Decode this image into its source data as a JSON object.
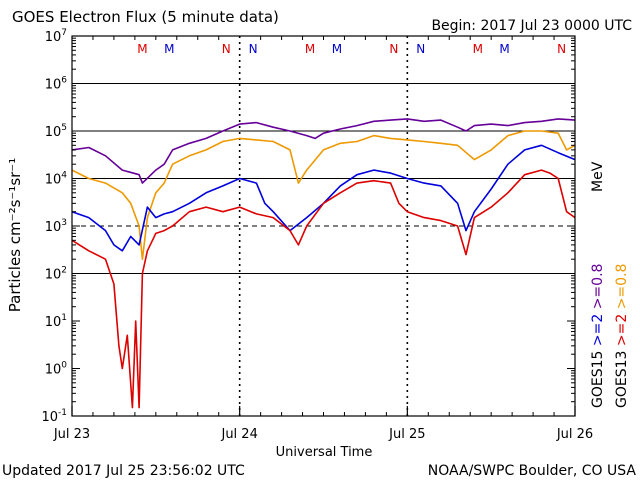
{
  "header": {
    "title": "GOES Electron Flux (5 minute data)",
    "begin": "Begin: 2017 Jul 23 0000 UTC"
  },
  "footer": {
    "updated": "Updated 2017 Jul 25 23:56:02 UTC",
    "credit": "NOAA/SWPC Boulder, CO USA"
  },
  "chart_data": {
    "type": "line",
    "title": "GOES Electron Flux (5 minute data)",
    "xlabel": "Universal Time",
    "ylabel": "Particles cm⁻²s⁻¹sr⁻¹",
    "y_scale": "log",
    "ylim": [
      0.1,
      10000000
    ],
    "y_ticks": [
      {
        "exp": "-1"
      },
      {
        "exp": "0"
      },
      {
        "exp": "1"
      },
      {
        "exp": "2"
      },
      {
        "exp": "3"
      },
      {
        "exp": "4"
      },
      {
        "exp": "5"
      },
      {
        "exp": "6"
      },
      {
        "exp": "7"
      }
    ],
    "y_solid_lines": [
      100,
      10000,
      100000,
      1000000
    ],
    "y_dashed_lines": [
      1000
    ],
    "xlim_days": [
      0,
      3
    ],
    "x_ticks": [
      {
        "day": 0,
        "label": "Jul 23"
      },
      {
        "day": 1,
        "label": "Jul 24"
      },
      {
        "day": 2,
        "label": "Jul 25"
      },
      {
        "day": 3,
        "label": "Jul 26"
      }
    ],
    "local_time_markers": [
      {
        "day": 0.42,
        "label": "M",
        "color": "#dd0000"
      },
      {
        "day": 0.58,
        "label": "M",
        "color": "#0000cc"
      },
      {
        "day": 0.92,
        "label": "N",
        "color": "#dd0000"
      },
      {
        "day": 1.08,
        "label": "N",
        "color": "#0000cc"
      },
      {
        "day": 1.42,
        "label": "M",
        "color": "#dd0000"
      },
      {
        "day": 1.58,
        "label": "M",
        "color": "#0000cc"
      },
      {
        "day": 1.92,
        "label": "N",
        "color": "#dd0000"
      },
      {
        "day": 2.08,
        "label": "N",
        "color": "#0000cc"
      },
      {
        "day": 2.42,
        "label": "M",
        "color": "#dd0000"
      },
      {
        "day": 2.58,
        "label": "M",
        "color": "#0000cc"
      },
      {
        "day": 2.92,
        "label": "N",
        "color": "#dd0000"
      },
      {
        "day": 3.08,
        "label": "N",
        "color": "#0000cc"
      }
    ],
    "legend": [
      {
        "label": "GOES15",
        "color": "#000000"
      },
      {
        "label": ">=2",
        "color": "#0000dd"
      },
      {
        "label": ">=0.8",
        "color": "#660099"
      },
      {
        "label": "GOES13",
        "color": "#000000"
      },
      {
        "label": ">=2",
        "color": "#dd0000"
      },
      {
        "label": ">=0.8",
        "color": "#ee9900"
      },
      {
        "label": "MeV",
        "color": "#000000"
      }
    ],
    "series": [
      {
        "name": "GOES15 >=0.8 MeV",
        "color": "#660099",
        "x": [
          0,
          0.1,
          0.2,
          0.3,
          0.4,
          0.42,
          0.5,
          0.55,
          0.6,
          0.7,
          0.8,
          0.9,
          1.0,
          1.1,
          1.2,
          1.3,
          1.4,
          1.45,
          1.5,
          1.6,
          1.7,
          1.8,
          1.9,
          2.0,
          2.1,
          2.2,
          2.3,
          2.35,
          2.4,
          2.5,
          2.6,
          2.7,
          2.8,
          2.9,
          3.0
        ],
        "y": [
          40000,
          45000,
          30000,
          15000,
          12000,
          8000,
          15000,
          20000,
          40000,
          55000,
          70000,
          100000,
          140000,
          150000,
          120000,
          100000,
          80000,
          70000,
          90000,
          110000,
          130000,
          160000,
          170000,
          180000,
          160000,
          170000,
          120000,
          100000,
          130000,
          140000,
          130000,
          150000,
          160000,
          180000,
          170000
        ]
      },
      {
        "name": "GOES13 >=0.8 MeV",
        "color": "#ee9900",
        "x": [
          0,
          0.1,
          0.2,
          0.3,
          0.35,
          0.4,
          0.42,
          0.45,
          0.5,
          0.55,
          0.6,
          0.7,
          0.8,
          0.9,
          1.0,
          1.1,
          1.2,
          1.3,
          1.35,
          1.4,
          1.5,
          1.6,
          1.7,
          1.8,
          1.9,
          2.0,
          2.1,
          2.2,
          2.3,
          2.4,
          2.5,
          2.6,
          2.7,
          2.8,
          2.9,
          2.95,
          3.0
        ],
        "y": [
          15000,
          10000,
          8000,
          5000,
          3000,
          1000,
          200,
          1500,
          5000,
          8000,
          20000,
          30000,
          40000,
          60000,
          70000,
          65000,
          60000,
          40000,
          8000,
          15000,
          40000,
          55000,
          60000,
          80000,
          70000,
          65000,
          60000,
          55000,
          50000,
          25000,
          40000,
          80000,
          100000,
          100000,
          90000,
          40000,
          50000
        ]
      },
      {
        "name": "GOES15 >=2 MeV",
        "color": "#0000dd",
        "x": [
          0,
          0.1,
          0.2,
          0.25,
          0.3,
          0.35,
          0.4,
          0.45,
          0.5,
          0.55,
          0.6,
          0.7,
          0.8,
          0.9,
          1.0,
          1.1,
          1.15,
          1.2,
          1.3,
          1.4,
          1.5,
          1.6,
          1.7,
          1.8,
          1.9,
          2.0,
          2.1,
          2.2,
          2.3,
          2.35,
          2.4,
          2.5,
          2.6,
          2.7,
          2.8,
          2.9,
          3.0
        ],
        "y": [
          2000,
          1500,
          800,
          400,
          300,
          600,
          400,
          2500,
          1500,
          1800,
          2000,
          3000,
          5000,
          7000,
          10000,
          8000,
          3000,
          2000,
          800,
          1500,
          3000,
          7000,
          12000,
          15000,
          13000,
          10000,
          8000,
          7000,
          3000,
          800,
          2000,
          6000,
          20000,
          40000,
          50000,
          35000,
          25000
        ]
      },
      {
        "name": "GOES13 >=2 MeV",
        "color": "#dd0000",
        "x": [
          0,
          0.1,
          0.2,
          0.25,
          0.28,
          0.3,
          0.33,
          0.36,
          0.38,
          0.4,
          0.42,
          0.45,
          0.48,
          0.5,
          0.55,
          0.6,
          0.7,
          0.8,
          0.9,
          1.0,
          1.1,
          1.2,
          1.3,
          1.35,
          1.4,
          1.5,
          1.6,
          1.7,
          1.8,
          1.9,
          1.95,
          2.0,
          2.1,
          2.2,
          2.3,
          2.35,
          2.4,
          2.5,
          2.6,
          2.7,
          2.8,
          2.85,
          2.9,
          2.95,
          3.0
        ],
        "y": [
          500,
          300,
          200,
          60,
          3,
          1,
          5,
          0.15,
          10,
          0.15,
          100,
          300,
          500,
          700,
          800,
          1000,
          2000,
          2500,
          2000,
          2500,
          1800,
          1500,
          800,
          400,
          1000,
          3000,
          5000,
          8000,
          9000,
          8000,
          3000,
          2000,
          1500,
          1300,
          1000,
          250,
          1500,
          2500,
          5000,
          12000,
          15000,
          13000,
          10000,
          2000,
          1500
        ]
      }
    ]
  }
}
